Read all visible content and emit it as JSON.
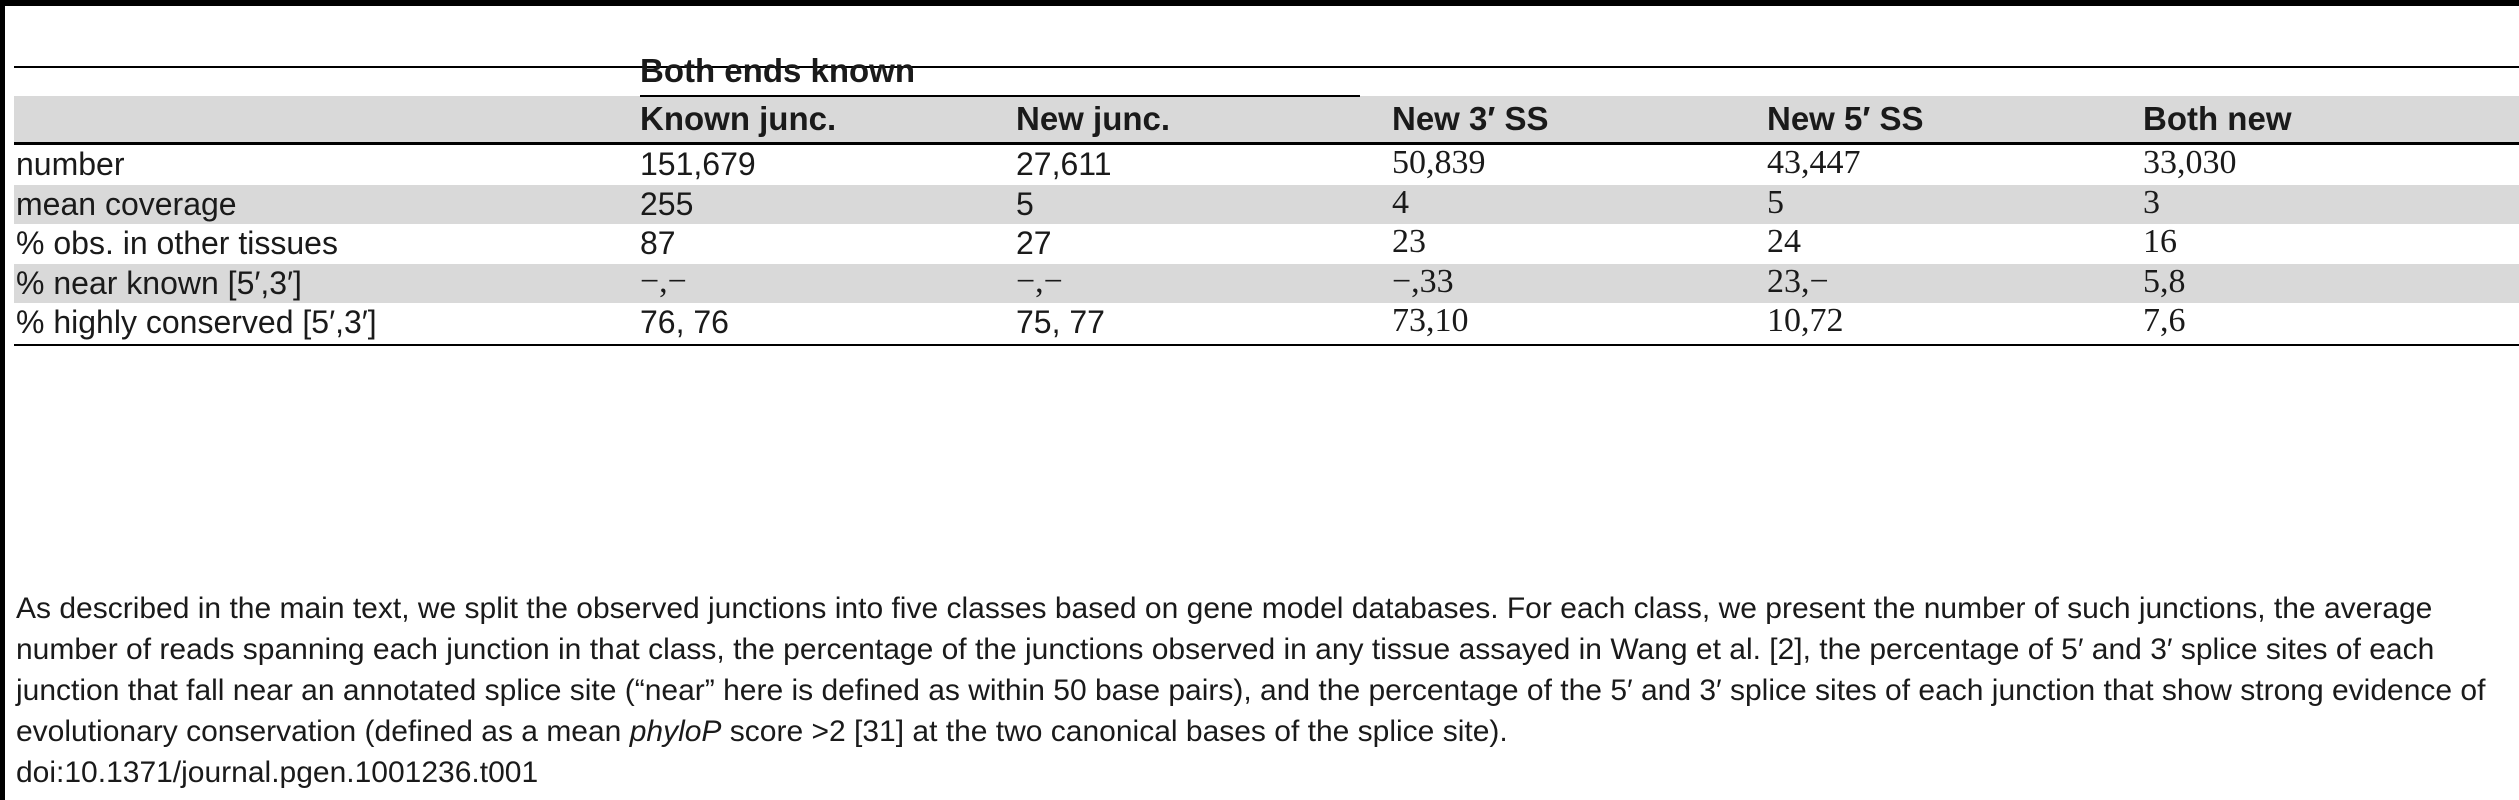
{
  "table": {
    "group_header": "Both ends known",
    "columns": [
      "Known junc.",
      "New junc.",
      "New 3′ SS",
      "New 5′ SS",
      "Both new"
    ],
    "rows": [
      {
        "label": "number",
        "values": [
          "151,679",
          "27,611",
          "50,839",
          "43,447",
          "33,030"
        ]
      },
      {
        "label": "mean coverage",
        "values": [
          "255",
          "5",
          "4",
          "5",
          "3"
        ]
      },
      {
        "label": "% obs. in other tissues",
        "values": [
          "87",
          "27",
          "23",
          "24",
          "16"
        ]
      },
      {
        "label": "% near known [5′,3′]",
        "values": [
          "−,−",
          "−,−",
          "−,33",
          "23,−",
          "5,8"
        ]
      },
      {
        "label": "% highly conserved [5′,3′]",
        "values": [
          "76, 76",
          "75, 77",
          "73,10",
          "10,72",
          "7,6"
        ]
      }
    ]
  },
  "footnote": {
    "before_italic": "As described in the main text, we split the observed junctions into five classes based on gene model databases. For each class, we present the number of such junctions, the average number of reads spanning each junction in that class, the percentage of the junctions observed in any tissue assayed in Wang et al. [2], the percentage of 5′ and 3′ splice sites of each junction that fall near an annotated splice site (“near” here is defined as within 50 base pairs), and the percentage of the 5′ and 3′ splice sites of each junction that show strong evidence of evolutionary conservation (defined as a mean ",
    "italic": "phyloP",
    "after_italic": " score >2 [31] at the two canonical bases of the splice site).",
    "doi": "doi:10.1371/journal.pgen.1001236.t001"
  }
}
